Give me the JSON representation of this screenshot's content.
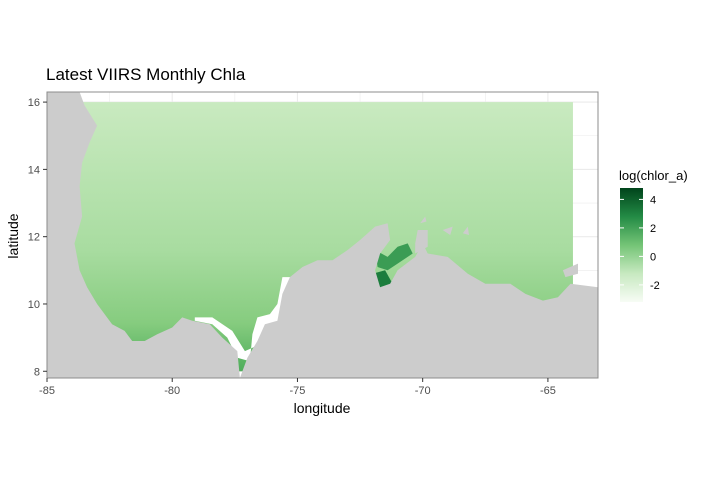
{
  "chart_data": {
    "type": "heatmap",
    "title": "Latest VIIRS Monthly Chla",
    "xlabel": "longitude",
    "ylabel": "latitude",
    "xlim": [
      -85,
      -63
    ],
    "ylim": [
      7.8,
      16.3
    ],
    "data_extent": {
      "x": [
        -84,
        -64
      ],
      "y": [
        8,
        16
      ]
    },
    "x_ticks": [
      -85,
      -80,
      -75,
      -70,
      -65
    ],
    "x_tick_labels": [
      "-85",
      "-80",
      "-75",
      "-70",
      "-65"
    ],
    "y_ticks": [
      8,
      10,
      12,
      14,
      16
    ],
    "y_tick_labels": [
      "8",
      "10",
      "12",
      "14",
      "16"
    ],
    "grid": true,
    "legend": {
      "title": "log(chlor_a)",
      "placement": "right",
      "range": [
        -3.2,
        4.8
      ],
      "ticks": [
        4,
        2,
        0,
        -2
      ],
      "tick_labels": [
        "4",
        "2",
        "0",
        "-2"
      ],
      "colors": [
        "#f7fcf5",
        "#c7e9c0",
        "#74c476",
        "#238b45",
        "#00441b"
      ]
    },
    "colors": {
      "land": "#cccccc",
      "panel_border": "#8c8c8c",
      "grid": "#ebebeb",
      "no_data": "#ffffff"
    },
    "land_regions": [
      {
        "name": "central-america",
        "points": [
          [
            -85,
            16.3
          ],
          [
            -83.7,
            16.3
          ],
          [
            -83.5,
            15.9
          ],
          [
            -83.0,
            15.3
          ],
          [
            -83.3,
            14.8
          ],
          [
            -83.6,
            14.2
          ],
          [
            -83.7,
            13.5
          ],
          [
            -83.6,
            12.6
          ],
          [
            -83.9,
            11.8
          ],
          [
            -83.7,
            11.0
          ],
          [
            -83.4,
            10.5
          ],
          [
            -83.0,
            10.0
          ],
          [
            -82.4,
            9.4
          ],
          [
            -81.9,
            9.2
          ],
          [
            -81.6,
            8.9
          ],
          [
            -81.1,
            8.9
          ],
          [
            -80.6,
            9.1
          ],
          [
            -80.0,
            9.3
          ],
          [
            -79.6,
            9.6
          ],
          [
            -79.2,
            9.5
          ],
          [
            -78.5,
            9.4
          ],
          [
            -78.0,
            9.0
          ],
          [
            -77.4,
            8.6
          ],
          [
            -77.3,
            7.8
          ],
          [
            -85,
            7.8
          ]
        ]
      },
      {
        "name": "south-america",
        "points": [
          [
            -77.3,
            7.8
          ],
          [
            -77.0,
            8.4
          ],
          [
            -76.6,
            8.9
          ],
          [
            -76.3,
            9.4
          ],
          [
            -75.8,
            9.5
          ],
          [
            -75.6,
            10.3
          ],
          [
            -75.3,
            10.8
          ],
          [
            -74.8,
            11.1
          ],
          [
            -74.2,
            11.3
          ],
          [
            -73.6,
            11.3
          ],
          [
            -73.0,
            11.6
          ],
          [
            -72.5,
            11.9
          ],
          [
            -71.9,
            12.3
          ],
          [
            -71.4,
            12.4
          ],
          [
            -71.3,
            11.9
          ],
          [
            -71.7,
            11.5
          ],
          [
            -71.9,
            11.0
          ],
          [
            -71.7,
            10.5
          ],
          [
            -71.3,
            10.6
          ],
          [
            -71.0,
            11.0
          ],
          [
            -70.3,
            11.4
          ],
          [
            -70.0,
            11.8
          ],
          [
            -69.8,
            11.5
          ],
          [
            -69.0,
            11.4
          ],
          [
            -68.2,
            10.9
          ],
          [
            -67.5,
            10.6
          ],
          [
            -66.5,
            10.6
          ],
          [
            -65.9,
            10.3
          ],
          [
            -65.2,
            10.1
          ],
          [
            -64.6,
            10.2
          ],
          [
            -64.1,
            10.6
          ],
          [
            -63,
            10.5
          ],
          [
            -63,
            7.8
          ]
        ]
      },
      {
        "name": "paraguana",
        "points": [
          [
            -70.3,
            11.5
          ],
          [
            -69.8,
            11.7
          ],
          [
            -69.8,
            12.2
          ],
          [
            -70.2,
            12.2
          ],
          [
            -70.3,
            11.8
          ]
        ]
      },
      {
        "name": "margarita",
        "points": [
          [
            -64.4,
            11.0
          ],
          [
            -63.8,
            11.2
          ],
          [
            -63.8,
            10.9
          ],
          [
            -64.3,
            10.8
          ]
        ]
      },
      {
        "name": "aruba",
        "points": [
          [
            -70.1,
            12.4
          ],
          [
            -69.9,
            12.6
          ],
          [
            -69.85,
            12.45
          ]
        ]
      },
      {
        "name": "curacao",
        "points": [
          [
            -69.2,
            12.2
          ],
          [
            -68.8,
            12.3
          ],
          [
            -68.9,
            12.05
          ]
        ]
      },
      {
        "name": "bonaire",
        "points": [
          [
            -68.4,
            12.1
          ],
          [
            -68.2,
            12.3
          ],
          [
            -68.15,
            12.05
          ]
        ]
      },
      {
        "name": "coiba",
        "points": [
          [
            -81.9,
            7.4
          ],
          [
            -81.6,
            7.6
          ],
          [
            -81.7,
            7.3
          ]
        ]
      }
    ],
    "no_data_regions": [
      {
        "name": "gulf-of-uraba-coast",
        "points": [
          [
            -79.1,
            9.5
          ],
          [
            -78.4,
            9.4
          ],
          [
            -77.8,
            9.0
          ],
          [
            -77.4,
            8.4
          ],
          [
            -76.9,
            8.3
          ],
          [
            -76.8,
            9.1
          ],
          [
            -76.6,
            9.6
          ],
          [
            -76.1,
            9.7
          ],
          [
            -75.8,
            10.0
          ],
          [
            -75.6,
            10.8
          ],
          [
            -75.2,
            10.8
          ],
          [
            -75.1,
            10.1
          ],
          [
            -75.3,
            9.7
          ],
          [
            -75.6,
            9.5
          ],
          [
            -76.0,
            9.1
          ],
          [
            -76.5,
            8.8
          ],
          [
            -77.1,
            8.6
          ],
          [
            -77.6,
            9.2
          ],
          [
            -78.4,
            9.6
          ],
          [
            -79.1,
            9.6
          ]
        ]
      }
    ],
    "dark_regions": [
      {
        "name": "lake-maracaibo",
        "value": 3.2,
        "points": [
          [
            -72.0,
            10.9
          ],
          [
            -71.5,
            11.0
          ],
          [
            -71.2,
            10.6
          ],
          [
            -71.1,
            9.9
          ],
          [
            -71.3,
            9.3
          ],
          [
            -71.7,
            9.2
          ],
          [
            -72.0,
            9.6
          ],
          [
            -72.2,
            10.2
          ]
        ]
      },
      {
        "name": "gulf-of-venezuela",
        "value": 2.2,
        "points": [
          [
            -71.9,
            11.6
          ],
          [
            -71.4,
            11.4
          ],
          [
            -71.0,
            11.7
          ],
          [
            -70.6,
            11.8
          ],
          [
            -70.4,
            11.5
          ],
          [
            -71.0,
            11.2
          ],
          [
            -71.4,
            11.0
          ],
          [
            -71.8,
            11.1
          ]
        ]
      },
      {
        "name": "gulf-of-panama",
        "value": 2.0,
        "points": [
          [
            -80.2,
            8.0
          ],
          [
            -80.0,
            8.4
          ],
          [
            -79.7,
            8.7
          ],
          [
            -79.2,
            8.9
          ],
          [
            -78.7,
            8.7
          ],
          [
            -78.2,
            8.4
          ],
          [
            -78.0,
            8.0
          ]
        ]
      }
    ]
  }
}
